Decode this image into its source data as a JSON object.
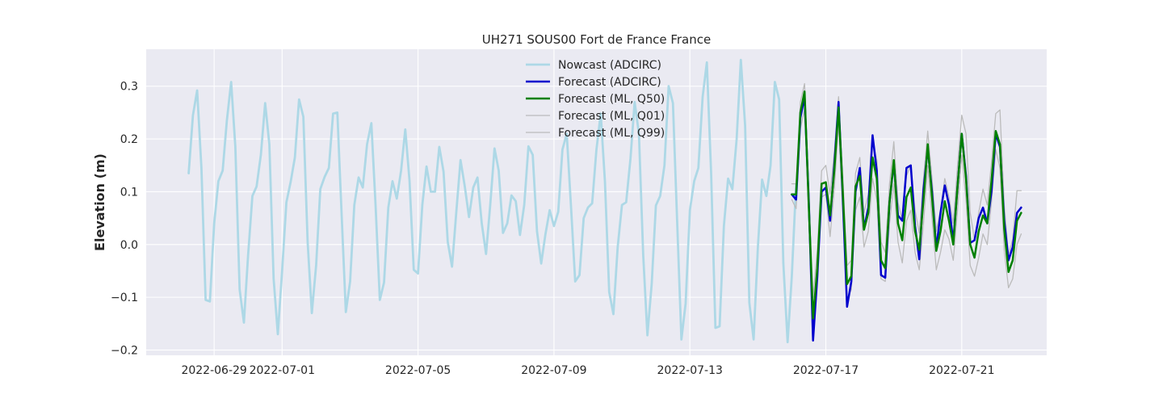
{
  "chart_data": {
    "type": "line",
    "title": "UH271 SOUS00 Fort de France France",
    "xlabel": "",
    "ylabel": "Elevation (m)",
    "xlim": [
      "2022-06-27T00:00",
      "2022-07-23T12:00"
    ],
    "ylim": [
      -0.21,
      0.37
    ],
    "x_ticks": [
      "2022-06-29",
      "2022-07-01",
      "2022-07-05",
      "2022-07-09",
      "2022-07-13",
      "2022-07-17",
      "2022-07-21"
    ],
    "y_ticks": [
      -0.2,
      -0.1,
      0.0,
      0.1,
      0.2,
      0.3
    ],
    "y_tick_labels": [
      "−0.2",
      "−0.1",
      "0.0",
      "0.1",
      "0.2",
      "0.3"
    ],
    "grid": true,
    "legend_position": "top-center",
    "colors": {
      "background": "#eaeaf2",
      "grid": "#ffffff",
      "nowcast": "#add8e6",
      "forecast_adcirc": "#0000cd",
      "forecast_ml_q50": "#008000",
      "forecast_ml_q01": "#bbbbbb",
      "forecast_ml_q99": "#bbbbbb"
    },
    "series": [
      {
        "name": "Nowcast (ADCIRC)",
        "start": "2022-06-28T06:00",
        "interval_hours": 3,
        "values": [
          0.135,
          0.245,
          0.292,
          0.145,
          -0.105,
          -0.108,
          0.04,
          0.12,
          0.14,
          0.235,
          0.308,
          0.185,
          -0.085,
          -0.148,
          -0.02,
          0.092,
          0.11,
          0.17,
          0.268,
          0.19,
          -0.065,
          -0.17,
          -0.05,
          0.08,
          0.118,
          0.165,
          0.275,
          0.242,
          0.005,
          -0.13,
          -0.04,
          0.105,
          0.128,
          0.145,
          0.248,
          0.25,
          0.06,
          -0.128,
          -0.07,
          0.075,
          0.127,
          0.108,
          0.19,
          0.23,
          0.075,
          -0.105,
          -0.072,
          0.07,
          0.12,
          0.087,
          0.14,
          0.218,
          0.12,
          -0.048,
          -0.055,
          0.075,
          0.148,
          0.1,
          0.1,
          0.185,
          0.138,
          0.005,
          -0.042,
          0.06,
          0.16,
          0.11,
          0.052,
          0.108,
          0.127,
          0.04,
          -0.018,
          0.075,
          0.182,
          0.14,
          0.022,
          0.04,
          0.093,
          0.082,
          0.018,
          0.075,
          0.186,
          0.17,
          0.025,
          -0.036,
          0.02,
          0.065,
          0.035,
          0.062,
          0.18,
          0.21,
          0.075,
          -0.07,
          -0.058,
          0.05,
          0.07,
          0.078,
          0.18,
          0.248,
          0.12,
          -0.09,
          -0.132,
          -0.005,
          0.075,
          0.08,
          0.162,
          0.27,
          0.21,
          -0.02,
          -0.172,
          -0.075,
          0.074,
          0.092,
          0.15,
          0.3,
          0.268,
          0.045,
          -0.18,
          -0.112,
          0.065,
          0.12,
          0.145,
          0.28,
          0.345,
          0.135,
          -0.158,
          -0.155,
          0.035,
          0.125,
          0.105,
          0.2,
          0.35,
          0.225,
          -0.11,
          -0.18,
          -0.005,
          0.123,
          0.092,
          0.15,
          0.308,
          0.275,
          -0.035,
          -0.185,
          -0.06,
          0.115
        ]
      },
      {
        "name": "Forecast (ADCIRC)",
        "start": "2022-07-16T00:00",
        "interval_hours": 3,
        "values": [
          0.095,
          0.085,
          0.24,
          0.28,
          0.08,
          -0.182,
          -0.06,
          0.1,
          0.108,
          0.045,
          0.15,
          0.27,
          0.09,
          -0.118,
          -0.07,
          0.1,
          0.145,
          0.03,
          0.07,
          0.207,
          0.14,
          -0.058,
          -0.063,
          0.08,
          0.155,
          0.055,
          0.045,
          0.145,
          0.15,
          0.035,
          -0.028,
          0.105,
          0.182,
          0.1,
          -0.008,
          0.06,
          0.112,
          0.075,
          0.005,
          0.11,
          0.21,
          0.13,
          0.003,
          0.008,
          0.05,
          0.07,
          0.04,
          0.1,
          0.21,
          0.185,
          0.045,
          -0.03,
          -0.005,
          0.06,
          0.07
        ]
      },
      {
        "name": "Forecast (ML, Q50)",
        "start": "2022-07-16T00:00",
        "interval_hours": 3,
        "values": [
          0.095,
          0.095,
          0.25,
          0.29,
          0.07,
          -0.14,
          -0.045,
          0.115,
          0.118,
          0.055,
          0.14,
          0.26,
          0.1,
          -0.075,
          -0.06,
          0.11,
          0.13,
          0.028,
          0.06,
          0.165,
          0.125,
          -0.03,
          -0.045,
          0.08,
          0.16,
          0.04,
          0.008,
          0.09,
          0.108,
          0.025,
          -0.01,
          0.085,
          0.19,
          0.09,
          -0.012,
          0.025,
          0.082,
          0.045,
          0.0,
          0.11,
          0.21,
          0.125,
          0.0,
          -0.025,
          0.025,
          0.055,
          0.04,
          0.12,
          0.215,
          0.19,
          0.03,
          -0.052,
          -0.03,
          0.045,
          0.06
        ]
      },
      {
        "name": "Forecast (ML, Q01)",
        "start": "2022-07-16T00:00",
        "interval_hours": 3,
        "values": [
          0.085,
          0.068,
          0.22,
          0.255,
          0.045,
          -0.16,
          -0.07,
          0.09,
          0.095,
          0.015,
          0.105,
          0.23,
          0.06,
          -0.105,
          -0.085,
          0.065,
          0.09,
          -0.005,
          0.025,
          0.125,
          0.085,
          -0.065,
          -0.07,
          0.04,
          0.115,
          0.005,
          -0.035,
          0.045,
          0.065,
          -0.015,
          -0.048,
          0.04,
          0.15,
          0.05,
          -0.048,
          -0.015,
          0.028,
          0.01,
          -0.03,
          0.065,
          0.17,
          0.085,
          -0.04,
          -0.06,
          -0.025,
          0.02,
          0.0,
          0.08,
          0.18,
          0.145,
          -0.01,
          -0.082,
          -0.065,
          0.0,
          0.02
        ]
      },
      {
        "name": "Forecast (ML, Q99)",
        "start": "2022-07-16T00:00",
        "interval_hours": 3,
        "values": [
          0.115,
          0.115,
          0.27,
          0.305,
          0.095,
          -0.1,
          -0.01,
          0.14,
          0.15,
          0.095,
          0.175,
          0.28,
          0.13,
          -0.04,
          -0.03,
          0.135,
          0.165,
          0.06,
          0.095,
          0.195,
          0.16,
          0.005,
          -0.015,
          0.115,
          0.195,
          0.08,
          0.045,
          0.13,
          0.15,
          0.065,
          0.022,
          0.125,
          0.215,
          0.125,
          0.025,
          0.065,
          0.125,
          0.09,
          0.04,
          0.15,
          0.245,
          0.21,
          0.06,
          0.01,
          0.06,
          0.105,
          0.075,
          0.155,
          0.248,
          0.255,
          0.075,
          -0.02,
          0.01,
          0.102,
          0.102
        ]
      }
    ]
  }
}
